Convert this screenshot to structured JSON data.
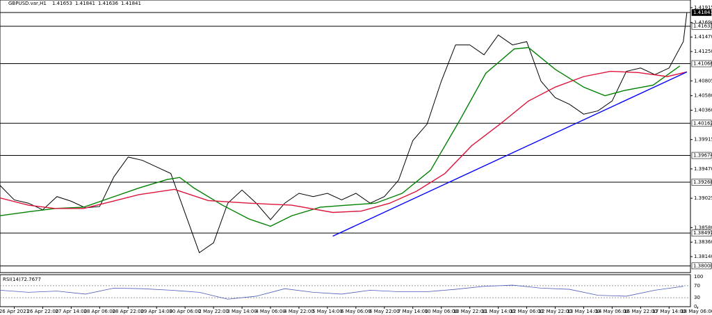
{
  "chart_data": {
    "type": "line",
    "title": "GBPUSD.var,H1",
    "quote": [
      1.41653,
      1.41841,
      1.41636,
      1.41841
    ],
    "xlim": [
      0,
      388
    ],
    "ylim": [
      1.37898,
      1.42031
    ],
    "xticks": [
      {
        "value": 8,
        "label": "26 Apr 2021"
      },
      {
        "value": 24,
        "label": "26 Apr 22:00"
      },
      {
        "value": 40,
        "label": "27 Apr 14:00"
      },
      {
        "value": 56,
        "label": "28 Apr 06:00"
      },
      {
        "value": 72,
        "label": "28 Apr 22:00"
      },
      {
        "value": 88,
        "label": "29 Apr 14:00"
      },
      {
        "value": 104,
        "label": "30 Apr 06:00"
      },
      {
        "value": 120,
        "label": "2 May 22:00"
      },
      {
        "value": 136,
        "label": "3 May 14:00"
      },
      {
        "value": 152,
        "label": "4 May 06:00"
      },
      {
        "value": 168,
        "label": "4 May 22:00"
      },
      {
        "value": 184,
        "label": "5 May 14:00"
      },
      {
        "value": 200,
        "label": "6 May 06:00"
      },
      {
        "value": 216,
        "label": "6 May 22:00"
      },
      {
        "value": 232,
        "label": "7 May 14:00"
      },
      {
        "value": 248,
        "label": "10 May 06:00"
      },
      {
        "value": 264,
        "label": "10 May 22:00"
      },
      {
        "value": 280,
        "label": "11 May 14:00"
      },
      {
        "value": 296,
        "label": "12 May 06:00"
      },
      {
        "value": 312,
        "label": "12 May 22:00"
      },
      {
        "value": 328,
        "label": "13 May 14:00"
      },
      {
        "value": 344,
        "label": "14 May 06:00"
      },
      {
        "value": 360,
        "label": "16 May 22:00"
      },
      {
        "value": 376,
        "label": "17 May 14:00"
      },
      {
        "value": 392,
        "label": "18 May 06:00"
      }
    ],
    "yticks": [
      {
        "value": 1.41915,
        "label": "1.41915"
      },
      {
        "value": 1.4169,
        "label": "1.41690"
      },
      {
        "value": 1.4147,
        "label": "1.41470"
      },
      {
        "value": 1.4125,
        "label": "1.41250"
      },
      {
        "value": 1.40805,
        "label": "1.40805"
      },
      {
        "value": 1.4058,
        "label": "1.40580"
      },
      {
        "value": 1.4036,
        "label": "1.40360"
      },
      {
        "value": 1.39915,
        "label": "1.39915"
      },
      {
        "value": 1.3947,
        "label": "1.39470"
      },
      {
        "value": 1.39025,
        "label": "1.39025"
      },
      {
        "value": 1.3858,
        "label": "1.38580"
      },
      {
        "value": 1.3836,
        "label": "1.38360"
      },
      {
        "value": 1.3814,
        "label": "1.38140"
      }
    ],
    "levels": [
      {
        "value": 1.41633,
        "label": "1.41633"
      },
      {
        "value": 1.41066,
        "label": "1.41066"
      },
      {
        "value": 1.40162,
        "label": "1.40162"
      },
      {
        "value": 1.39674,
        "label": "1.39674"
      },
      {
        "value": 1.39268,
        "label": "1.39268"
      },
      {
        "value": 1.38497,
        "label": "1.38497"
      },
      {
        "value": 1.38,
        "label": "1.38000"
      }
    ],
    "current_price": {
      "value": 1.41841,
      "label": "1.41841"
    },
    "series": [
      {
        "color": "#000000",
        "x": [
          0,
          8,
          16,
          24,
          32,
          40,
          48,
          56,
          64,
          72,
          80,
          88,
          96,
          104,
          112,
          120,
          128,
          136,
          144,
          152,
          160,
          168,
          176,
          184,
          192,
          200,
          208,
          216,
          224,
          232,
          240,
          248,
          256,
          264,
          272,
          280,
          288,
          296,
          304,
          312,
          320,
          328,
          336,
          344,
          352,
          360,
          368,
          376,
          384,
          386
        ],
        "values": [
          1.3922,
          1.39,
          1.3895,
          1.3885,
          1.3905,
          1.3898,
          1.3888,
          1.389,
          1.3935,
          1.3965,
          1.396,
          1.395,
          1.394,
          1.388,
          1.382,
          1.3835,
          1.3895,
          1.3915,
          1.3895,
          1.387,
          1.3895,
          1.391,
          1.3905,
          1.391,
          1.39,
          1.391,
          1.3895,
          1.3905,
          1.393,
          1.399,
          1.4015,
          1.408,
          1.4135,
          1.4135,
          1.412,
          1.415,
          1.4135,
          1.414,
          1.408,
          1.4055,
          1.4045,
          1.403,
          1.4035,
          1.405,
          1.4095,
          1.41,
          1.409,
          1.41,
          1.414,
          1.4184
        ]
      },
      {
        "color": "#008000",
        "x": [
          0,
          16,
          31,
          47,
          62,
          78,
          94,
          101,
          109,
          125,
          140,
          152,
          164,
          180,
          195,
          211,
          226,
          242,
          258,
          273,
          289,
          297,
          312,
          328,
          340,
          351,
          367,
          382
        ],
        "values": [
          1.3876,
          1.3882,
          1.3887,
          1.3889,
          1.3903,
          1.3918,
          1.3931,
          1.3934,
          1.3918,
          1.3892,
          1.3871,
          1.386,
          1.3876,
          1.3889,
          1.3892,
          1.3895,
          1.391,
          1.3945,
          1.4019,
          1.4092,
          1.4129,
          1.4131,
          1.4098,
          1.4071,
          1.4058,
          1.4066,
          1.4074,
          1.4103
        ]
      },
      {
        "color": "#dc143c",
        "x": [
          0,
          16,
          31,
          47,
          62,
          78,
          98,
          117,
          140,
          164,
          187,
          203,
          219,
          234,
          250,
          265,
          281,
          297,
          312,
          328,
          343,
          359,
          375,
          386
        ],
        "values": [
          1.3903,
          1.3892,
          1.3887,
          1.3887,
          1.3897,
          1.3908,
          1.3916,
          1.3899,
          1.3895,
          1.3892,
          1.3881,
          1.3883,
          1.3895,
          1.3913,
          1.394,
          1.3982,
          1.4015,
          1.405,
          1.4071,
          1.4087,
          1.4095,
          1.4093,
          1.4087,
          1.4094
        ]
      },
      {
        "color": "#0000ff",
        "x": [
          187,
          386
        ],
        "values": [
          1.3845,
          1.4094
        ]
      }
    ],
    "rsi": {
      "title": "RSI(14)",
      "value": 72.7677,
      "color": "#4a5ab8",
      "ylim": [
        0,
        100
      ],
      "yticks": [
        100,
        70,
        30,
        0
      ],
      "x": [
        0,
        16,
        32,
        48,
        64,
        80,
        96,
        112,
        128,
        144,
        160,
        176,
        192,
        208,
        224,
        240,
        256,
        272,
        288,
        304,
        320,
        336,
        352,
        368,
        384
      ],
      "values": [
        55,
        48,
        52,
        42,
        62,
        60,
        55,
        48,
        25,
        35,
        60,
        48,
        42,
        55,
        50,
        50,
        58,
        68,
        72,
        62,
        58,
        38,
        35,
        55,
        68
      ]
    }
  }
}
